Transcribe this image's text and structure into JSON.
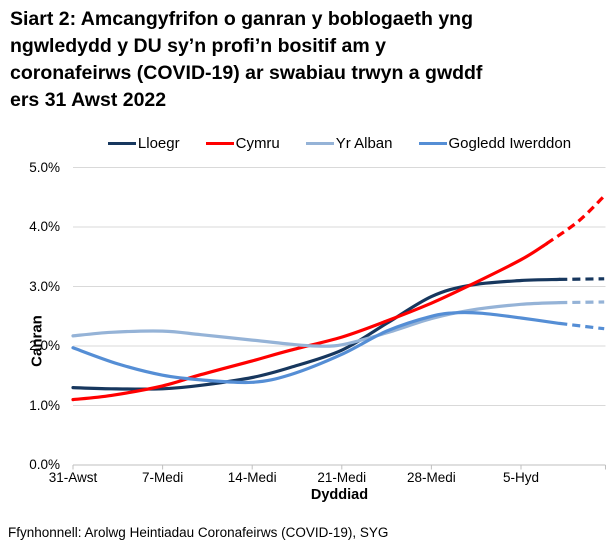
{
  "header": {
    "title": "Siart 2: Amcangyfrifon o ganran y boblogaeth yng ngwledydd y DU sy’n profi’n bositif am y coronafeirws (COVID-19) ar swabiau trwyn a gwddf ers 31 Awst 2022",
    "title_lines": [
      "Siart 2: Amcangyfrifon o ganran y boblogaeth yng",
      "ngwledydd y DU sy’n profi’n bositif am y",
      "coronafeirws (COVID-19) ar swabiau trwyn a gwddf",
      "ers 31 Awst 2022"
    ]
  },
  "legend": {
    "items": [
      {
        "label": "Lloegr",
        "color": "#17375E"
      },
      {
        "label": "Cymru",
        "color": "#FF0000"
      },
      {
        "label": "Yr Alban",
        "color": "#95B3D7"
      },
      {
        "label": "Gogledd Iwerddon",
        "color": "#558ED5"
      }
    ]
  },
  "chart_data": {
    "type": "line",
    "title": "Siart 2: Amcangyfrifon o ganran y boblogaeth yng ngwledydd y DU sy’n profi’n bositif am y coronafeirws (COVID-19) ar swabiau trwyn a gwddf ers 31 Awst 2022",
    "xlabel": "Dyddiad",
    "ylabel": "Canran",
    "x_unit": "days since 31 Awst 2022",
    "ylim": [
      0,
      5
    ],
    "x_end_day": 41.6,
    "grid": "horizontal",
    "legend_position": "top",
    "axis_color": "#BFBFBF",
    "grid_color": "#D9D9D9",
    "y_ticks": [
      {
        "label": "0.0%",
        "value": 0
      },
      {
        "label": "1.0%",
        "value": 1
      },
      {
        "label": "2.0%",
        "value": 2
      },
      {
        "label": "3.0%",
        "value": 3
      },
      {
        "label": "4.0%",
        "value": 4
      },
      {
        "label": "5.0%",
        "value": 5
      }
    ],
    "x_ticks": [
      {
        "label": "31-Awst",
        "day": 0
      },
      {
        "label": "7-Medi",
        "day": 7
      },
      {
        "label": "14-Medi",
        "day": 14
      },
      {
        "label": "21-Medi",
        "day": 21
      },
      {
        "label": "28-Medi",
        "day": 28
      },
      {
        "label": "5-Hyd",
        "day": 35
      }
    ],
    "series": [
      {
        "name": "Lloegr",
        "color": "#17375E",
        "dashed_from_day": 38,
        "points": [
          [
            0,
            1.3
          ],
          [
            3,
            1.28
          ],
          [
            7,
            1.28
          ],
          [
            10,
            1.34
          ],
          [
            14,
            1.47
          ],
          [
            17,
            1.64
          ],
          [
            21,
            1.93
          ],
          [
            24.5,
            2.38
          ],
          [
            28,
            2.83
          ],
          [
            31,
            3.02
          ],
          [
            35,
            3.1
          ],
          [
            38,
            3.12
          ],
          [
            41.5,
            3.13
          ]
        ]
      },
      {
        "name": "Cymru",
        "color": "#FF0000",
        "dashed_from_day": 37,
        "points": [
          [
            0,
            1.1
          ],
          [
            3,
            1.17
          ],
          [
            7,
            1.33
          ],
          [
            10,
            1.52
          ],
          [
            14,
            1.75
          ],
          [
            17,
            1.93
          ],
          [
            21,
            2.15
          ],
          [
            24.5,
            2.42
          ],
          [
            28,
            2.72
          ],
          [
            31,
            3.02
          ],
          [
            35,
            3.45
          ],
          [
            37,
            3.72
          ],
          [
            39.5,
            4.1
          ],
          [
            41.5,
            4.52
          ]
        ]
      },
      {
        "name": "Yr Alban",
        "color": "#95B3D7",
        "dashed_from_day": 38,
        "points": [
          [
            0,
            2.17
          ],
          [
            3,
            2.23
          ],
          [
            7,
            2.25
          ],
          [
            10,
            2.19
          ],
          [
            14,
            2.1
          ],
          [
            17,
            2.03
          ],
          [
            19,
            2.0
          ],
          [
            21,
            2.02
          ],
          [
            24.5,
            2.22
          ],
          [
            28,
            2.46
          ],
          [
            31,
            2.6
          ],
          [
            35,
            2.7
          ],
          [
            38,
            2.73
          ],
          [
            41.5,
            2.74
          ]
        ]
      },
      {
        "name": "Gogledd Iwerddon",
        "color": "#558ED5",
        "dashed_from_day": 38,
        "points": [
          [
            0,
            1.97
          ],
          [
            3.5,
            1.7
          ],
          [
            7,
            1.51
          ],
          [
            10,
            1.43
          ],
          [
            14,
            1.39
          ],
          [
            17,
            1.52
          ],
          [
            21,
            1.86
          ],
          [
            24.5,
            2.25
          ],
          [
            28,
            2.5
          ],
          [
            30,
            2.56
          ],
          [
            32,
            2.55
          ],
          [
            35,
            2.47
          ],
          [
            38,
            2.38
          ],
          [
            41.5,
            2.29
          ]
        ]
      }
    ]
  },
  "footer": {
    "source": "Ffynhonnell: Arolwg Heintiadau Coronafeirws (COVID-19), SYG"
  }
}
